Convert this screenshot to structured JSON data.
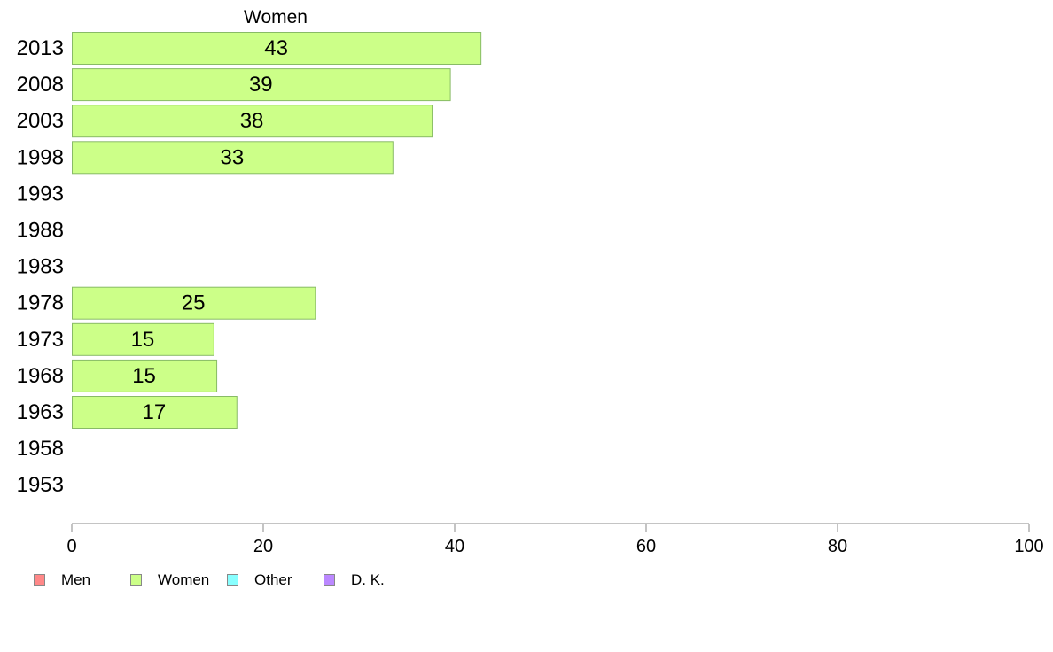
{
  "chart_data": {
    "type": "bar",
    "orientation": "horizontal",
    "title": "Women",
    "categories": [
      "2013",
      "2008",
      "2003",
      "1998",
      "1993",
      "1988",
      "1983",
      "1978",
      "1973",
      "1968",
      "1963",
      "1958",
      "1953"
    ],
    "series": [
      {
        "name": "Women",
        "values": [
          42.7,
          39.5,
          37.6,
          33.5,
          null,
          null,
          null,
          25.4,
          14.8,
          15.1,
          17.2,
          null,
          null
        ],
        "data_labels": [
          "43",
          "39",
          "38",
          "33",
          "",
          "",
          "",
          "25",
          "15",
          "15",
          "17",
          "",
          ""
        ],
        "color": "#ccff88"
      }
    ],
    "xlim": [
      0,
      100
    ],
    "x_ticks": [
      0,
      20,
      40,
      60,
      80,
      100
    ],
    "grid": false,
    "legend": {
      "placement": "bottom-left",
      "entries": [
        {
          "label": "Men",
          "color": "#ff8888"
        },
        {
          "label": "Women",
          "color": "#ccff88"
        },
        {
          "label": "Other",
          "color": "#88ffff"
        },
        {
          "label": "D. K.",
          "color": "#bb88ff"
        }
      ]
    },
    "colors": {
      "bar_fill": "#ccff88",
      "bar_stroke": "#88bb66",
      "axis": "#888888"
    }
  }
}
